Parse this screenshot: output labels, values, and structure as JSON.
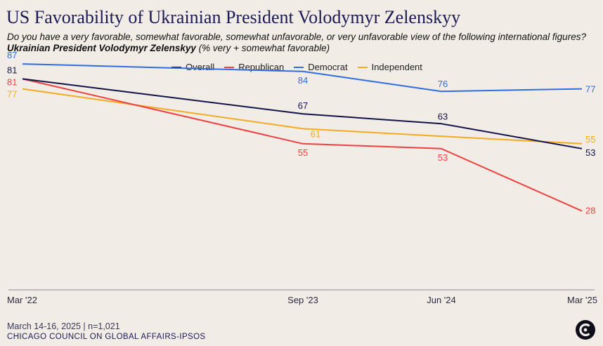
{
  "title": "US Favorability of Ukrainian President Volodymyr Zelenskyy",
  "subtitle_text": "Do you have a very favorable, somewhat favorable, somewhat unfavorable, or very unfavorable view of the following international figures?",
  "subtitle_bold": "Ukrainian President Volodymyr Zelenskyy",
  "subtitle_tail": "(% very + somewhat favorable)",
  "footer_date": "March 14-16, 2025 | n=1,021",
  "footer_source": "CHICAGO COUNCIL ON GLOBAL AFFAIRS-IPSOS",
  "logo_icon": "chicago-council-logo-icon",
  "chart_data": {
    "type": "line",
    "x": [
      "Mar '22",
      "Sep '23",
      "Jun '24",
      "Mar '25"
    ],
    "ylim": [
      0,
      100
    ],
    "grid": false,
    "legend_position": "top",
    "series": [
      {
        "name": "Overall",
        "color": "#13124a",
        "values": [
          81,
          67,
          63,
          53
        ]
      },
      {
        "name": "Republican",
        "color": "#ef4040",
        "values": [
          81,
          55,
          53,
          28
        ]
      },
      {
        "name": "Democrat",
        "color": "#2f6de1",
        "values": [
          87,
          84,
          76,
          77
        ]
      },
      {
        "name": "Independent",
        "color": "#f5aa20",
        "values": [
          77,
          61,
          58,
          55
        ]
      }
    ],
    "data_labels": [
      {
        "series": "Democrat",
        "x": "Mar '22",
        "text": "87"
      },
      {
        "series": "Overall",
        "x": "Mar '22",
        "text": "81"
      },
      {
        "series": "Republican",
        "x": "Mar '22",
        "text": "81"
      },
      {
        "series": "Independent",
        "x": "Mar '22",
        "text": "77"
      },
      {
        "series": "Democrat",
        "x": "Sep '23",
        "text": "84"
      },
      {
        "series": "Overall",
        "x": "Sep '23",
        "text": "67"
      },
      {
        "series": "Independent",
        "x": "Sep '23",
        "text": "61"
      },
      {
        "series": "Republican",
        "x": "Sep '23",
        "text": "55"
      },
      {
        "series": "Democrat",
        "x": "Jun '24",
        "text": "76"
      },
      {
        "series": "Overall",
        "x": "Jun '24",
        "text": "63"
      },
      {
        "series": "Republican",
        "x": "Jun '24",
        "text": "53"
      },
      {
        "series": "Democrat",
        "x": "Mar '25",
        "text": "77"
      },
      {
        "series": "Independent",
        "x": "Mar '25",
        "text": "55"
      },
      {
        "series": "Overall",
        "x": "Mar '25",
        "text": "53"
      },
      {
        "series": "Republican",
        "x": "Mar '25",
        "text": "28"
      }
    ]
  }
}
